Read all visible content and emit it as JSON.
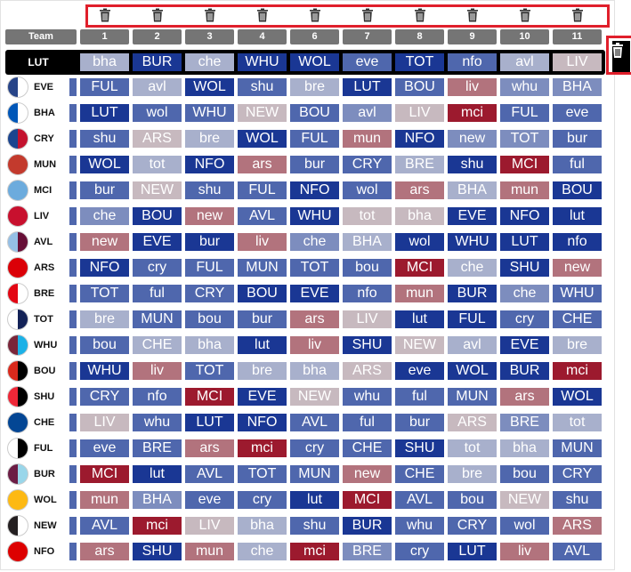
{
  "header": {
    "team_label": "Team",
    "gameweeks": [
      "1",
      "2",
      "3",
      "4",
      "6",
      "7",
      "8",
      "9",
      "10",
      "11"
    ]
  },
  "selected_team": {
    "name": "LUT",
    "fixtures": [
      "bha",
      "BUR",
      "che",
      "WHU",
      "WOL",
      "eve",
      "TOT",
      "nfo",
      "avl",
      "LIV"
    ]
  },
  "colors": {
    "d1": "#1a3794",
    "d2": "#4f67ad",
    "d3": "#7d8dbe",
    "d4": "#a8b0cc",
    "d5": "#c7b9bf",
    "d6": "#b2737d",
    "d7": "#9c1a2e",
    "trash_border": "#e01f2b"
  },
  "icons": {
    "trash": "trash-icon"
  },
  "teams": [
    {
      "name": "EVE",
      "badge": [
        "#274488",
        "#ffffff"
      ],
      "fixtures": [
        "FUL",
        "avl",
        "WOL",
        "shu",
        "bre",
        "LUT",
        "BOU",
        "liv",
        "whu",
        "BHA"
      ],
      "levels": [
        2,
        4,
        1,
        2,
        4,
        1,
        2,
        6,
        3,
        3
      ]
    },
    {
      "name": "BHA",
      "badge": [
        "#0057b8",
        "#ffffff"
      ],
      "fixtures": [
        "LUT",
        "wol",
        "WHU",
        "NEW",
        "BOU",
        "avl",
        "LIV",
        "mci",
        "FUL",
        "eve"
      ],
      "levels": [
        1,
        2,
        2,
        5,
        2,
        3,
        5,
        7,
        2,
        2
      ]
    },
    {
      "name": "CRY",
      "badge": [
        "#1b458f",
        "#c4122e"
      ],
      "fixtures": [
        "shu",
        "ARS",
        "bre",
        "WOL",
        "FUL",
        "mun",
        "NFO",
        "new",
        "TOT",
        "bur"
      ],
      "levels": [
        2,
        5,
        4,
        1,
        2,
        6,
        1,
        3,
        3,
        2
      ]
    },
    {
      "name": "MUN",
      "badge": [
        "#c33a2d",
        "#c33a2d"
      ],
      "fixtures": [
        "WOL",
        "tot",
        "NFO",
        "ars",
        "bur",
        "CRY",
        "BRE",
        "shu",
        "MCI",
        "ful"
      ],
      "levels": [
        1,
        4,
        1,
        6,
        2,
        2,
        4,
        1,
        7,
        2
      ]
    },
    {
      "name": "MCI",
      "badge": [
        "#6cabdd",
        "#6cabdd"
      ],
      "fixtures": [
        "bur",
        "NEW",
        "shu",
        "FUL",
        "NFO",
        "wol",
        "ars",
        "BHA",
        "mun",
        "BOU"
      ],
      "levels": [
        2,
        5,
        2,
        2,
        1,
        2,
        6,
        4,
        6,
        1
      ]
    },
    {
      "name": "LIV",
      "badge": [
        "#c8102e",
        "#c8102e"
      ],
      "fixtures": [
        "che",
        "BOU",
        "new",
        "AVL",
        "WHU",
        "tot",
        "bha",
        "EVE",
        "NFO",
        "lut"
      ],
      "levels": [
        3,
        1,
        6,
        2,
        1,
        5,
        5,
        1,
        1,
        1
      ]
    },
    {
      "name": "AVL",
      "badge": [
        "#95bfe5",
        "#670e36"
      ],
      "fixtures": [
        "new",
        "EVE",
        "bur",
        "liv",
        "che",
        "BHA",
        "wol",
        "WHU",
        "LUT",
        "nfo"
      ],
      "levels": [
        6,
        1,
        1,
        6,
        3,
        4,
        1,
        1,
        1,
        1
      ]
    },
    {
      "name": "ARS",
      "badge": [
        "#db0007",
        "#db0007"
      ],
      "fixtures": [
        "NFO",
        "cry",
        "FUL",
        "MUN",
        "TOT",
        "bou",
        "MCI",
        "che",
        "SHU",
        "new"
      ],
      "levels": [
        1,
        2,
        2,
        2,
        2,
        2,
        7,
        4,
        1,
        6
      ]
    },
    {
      "name": "BRE",
      "badge": [
        "#e30613",
        "#ffffff"
      ],
      "fixtures": [
        "TOT",
        "ful",
        "CRY",
        "BOU",
        "EVE",
        "nfo",
        "mun",
        "BUR",
        "che",
        "WHU"
      ],
      "levels": [
        2,
        2,
        2,
        1,
        1,
        2,
        6,
        1,
        3,
        2
      ]
    },
    {
      "name": "TOT",
      "badge": [
        "#ffffff",
        "#132257"
      ],
      "fixtures": [
        "bre",
        "MUN",
        "bou",
        "bur",
        "ars",
        "LIV",
        "lut",
        "FUL",
        "cry",
        "CHE"
      ],
      "levels": [
        4,
        2,
        2,
        2,
        6,
        5,
        1,
        1,
        2,
        2
      ]
    },
    {
      "name": "WHU",
      "badge": [
        "#7a263a",
        "#1bb1e7"
      ],
      "fixtures": [
        "bou",
        "CHE",
        "bha",
        "lut",
        "liv",
        "SHU",
        "NEW",
        "avl",
        "EVE",
        "bre"
      ],
      "levels": [
        2,
        4,
        4,
        1,
        6,
        1,
        5,
        4,
        1,
        4
      ]
    },
    {
      "name": "BOU",
      "badge": [
        "#da291c",
        "#000000"
      ],
      "fixtures": [
        "WHU",
        "liv",
        "TOT",
        "bre",
        "bha",
        "ARS",
        "eve",
        "WOL",
        "BUR",
        "mci"
      ],
      "levels": [
        1,
        6,
        2,
        4,
        4,
        5,
        1,
        1,
        1,
        7
      ]
    },
    {
      "name": "SHU",
      "badge": [
        "#ee2737",
        "#000000"
      ],
      "fixtures": [
        "CRY",
        "nfo",
        "MCI",
        "EVE",
        "NEW",
        "whu",
        "ful",
        "MUN",
        "ars",
        "WOL"
      ],
      "levels": [
        2,
        2,
        7,
        1,
        5,
        2,
        2,
        2,
        6,
        1
      ]
    },
    {
      "name": "CHE",
      "badge": [
        "#034694",
        "#034694"
      ],
      "fixtures": [
        "LIV",
        "whu",
        "LUT",
        "NFO",
        "AVL",
        "ful",
        "bur",
        "ARS",
        "BRE",
        "tot"
      ],
      "levels": [
        5,
        2,
        1,
        1,
        2,
        2,
        2,
        5,
        3,
        4
      ]
    },
    {
      "name": "FUL",
      "badge": [
        "#ffffff",
        "#000000"
      ],
      "fixtures": [
        "eve",
        "BRE",
        "ars",
        "mci",
        "cry",
        "CHE",
        "SHU",
        "tot",
        "bha",
        "MUN"
      ],
      "levels": [
        2,
        2,
        6,
        7,
        2,
        2,
        1,
        4,
        4,
        2
      ]
    },
    {
      "name": "BUR",
      "badge": [
        "#6c1d45",
        "#99d6ea"
      ],
      "fixtures": [
        "MCI",
        "lut",
        "AVL",
        "TOT",
        "MUN",
        "new",
        "CHE",
        "bre",
        "bou",
        "CRY"
      ],
      "levels": [
        7,
        1,
        2,
        2,
        2,
        6,
        2,
        4,
        2,
        2
      ]
    },
    {
      "name": "WOL",
      "badge": [
        "#fdb913",
        "#fdb913"
      ],
      "fixtures": [
        "mun",
        "BHA",
        "eve",
        "cry",
        "lut",
        "MCI",
        "AVL",
        "bou",
        "NEW",
        "shu"
      ],
      "levels": [
        6,
        3,
        2,
        2,
        1,
        7,
        2,
        2,
        5,
        2
      ]
    },
    {
      "name": "NEW",
      "badge": [
        "#241f20",
        "#ffffff"
      ],
      "fixtures": [
        "AVL",
        "mci",
        "LIV",
        "bha",
        "shu",
        "BUR",
        "whu",
        "CRY",
        "wol",
        "ARS"
      ],
      "levels": [
        2,
        7,
        5,
        4,
        2,
        1,
        2,
        2,
        2,
        6
      ]
    },
    {
      "name": "NFO",
      "badge": [
        "#dd0000",
        "#dd0000"
      ],
      "fixtures": [
        "ars",
        "SHU",
        "mun",
        "che",
        "mci",
        "BRE",
        "cry",
        "LUT",
        "liv",
        "AVL"
      ],
      "levels": [
        6,
        1,
        6,
        4,
        7,
        3,
        2,
        1,
        6,
        2
      ]
    }
  ],
  "selected_levels": [
    4,
    1,
    4,
    1,
    1,
    2,
    1,
    2,
    4,
    5
  ],
  "team_fdr_col": [
    2,
    2,
    2,
    2,
    2,
    2,
    2,
    2,
    2,
    2,
    2,
    2,
    2,
    2,
    2,
    2,
    2,
    2,
    2
  ]
}
